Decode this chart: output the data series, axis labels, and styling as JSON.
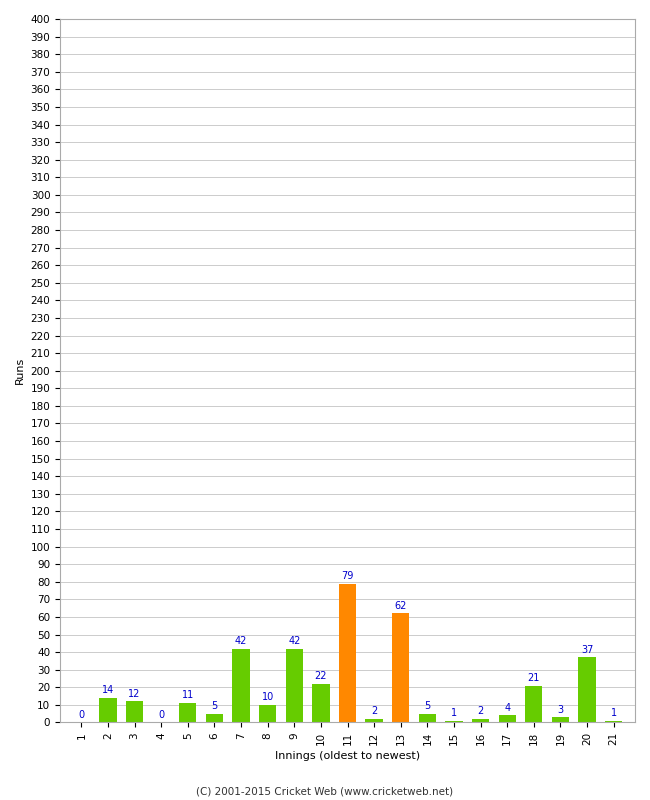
{
  "innings": [
    1,
    2,
    3,
    4,
    5,
    6,
    7,
    8,
    9,
    10,
    11,
    12,
    13,
    14,
    15,
    16,
    17,
    18,
    19,
    20,
    21
  ],
  "runs": [
    0,
    14,
    12,
    0,
    11,
    5,
    42,
    10,
    42,
    22,
    79,
    2,
    62,
    5,
    1,
    2,
    4,
    21,
    3,
    37,
    1
  ],
  "colors": [
    "#66cc00",
    "#66cc00",
    "#66cc00",
    "#66cc00",
    "#66cc00",
    "#66cc00",
    "#66cc00",
    "#66cc00",
    "#66cc00",
    "#66cc00",
    "#ff8800",
    "#66cc00",
    "#ff8800",
    "#66cc00",
    "#66cc00",
    "#66cc00",
    "#66cc00",
    "#66cc00",
    "#66cc00",
    "#66cc00",
    "#66cc00"
  ],
  "xlabel": "Innings (oldest to newest)",
  "ylabel": "Runs",
  "ylim": [
    0,
    400
  ],
  "ytick_step": 10,
  "bg_color": "#ffffff",
  "grid_color": "#cccccc",
  "bar_label_color": "#0000cc",
  "bar_label_fontsize": 7,
  "axis_label_fontsize": 8,
  "tick_fontsize": 7.5,
  "footer": "(C) 2001-2015 Cricket Web (www.cricketweb.net)"
}
